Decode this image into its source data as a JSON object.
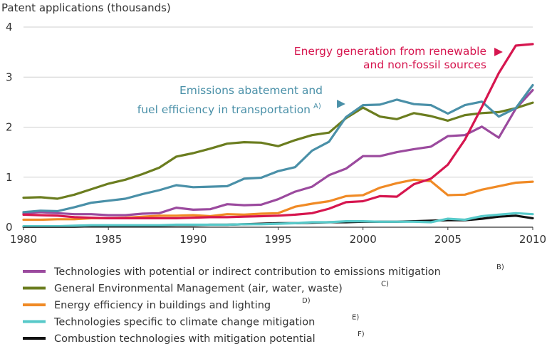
{
  "chart_data": {
    "type": "line",
    "ylabel": "Patent applications (thousands)",
    "xlabel": "",
    "xlim": [
      1980,
      2010
    ],
    "ylim": [
      0,
      4
    ],
    "grid": "horizontal",
    "x_ticks": [
      "1980",
      "1985",
      "1990",
      "1995",
      "2000",
      "2005",
      "2010"
    ],
    "y_ticks": [
      "0",
      "1",
      "2",
      "3",
      "4"
    ],
    "x": [
      1980,
      1981,
      1982,
      1983,
      1984,
      1985,
      1986,
      1987,
      1988,
      1989,
      1990,
      1991,
      1992,
      1993,
      1994,
      1995,
      1996,
      1997,
      1998,
      1999,
      2000,
      2001,
      2002,
      2003,
      2004,
      2005,
      2006,
      2007,
      2008,
      2009,
      2010
    ],
    "series": [
      {
        "key": "renewable",
        "color": "#d6164f",
        "values": [
          0.25,
          0.24,
          0.23,
          0.2,
          0.19,
          0.18,
          0.18,
          0.18,
          0.18,
          0.18,
          0.19,
          0.2,
          0.2,
          0.21,
          0.22,
          0.23,
          0.25,
          0.28,
          0.37,
          0.5,
          0.52,
          0.62,
          0.61,
          0.86,
          0.97,
          1.25,
          1.75,
          2.4,
          3.08,
          3.63,
          3.66
        ]
      },
      {
        "key": "transport",
        "color": "#4a90a8",
        "values": [
          0.3,
          0.33,
          0.32,
          0.4,
          0.49,
          0.53,
          0.57,
          0.66,
          0.74,
          0.84,
          0.8,
          0.81,
          0.82,
          0.97,
          0.99,
          1.12,
          1.2,
          1.53,
          1.71,
          2.2,
          2.44,
          2.45,
          2.55,
          2.46,
          2.44,
          2.27,
          2.44,
          2.51,
          2.21,
          2.38,
          2.84
        ]
      },
      {
        "name": "Technologies with potential or indirect contribution to emissions mitigation",
        "key": "potential",
        "color": "#9b4a9e",
        "values": [
          0.28,
          0.3,
          0.28,
          0.26,
          0.26,
          0.24,
          0.24,
          0.27,
          0.28,
          0.39,
          0.35,
          0.36,
          0.46,
          0.44,
          0.45,
          0.56,
          0.71,
          0.81,
          1.04,
          1.17,
          1.42,
          1.42,
          1.5,
          1.56,
          1.61,
          1.82,
          1.84,
          2.01,
          1.79,
          2.37,
          2.74
        ]
      },
      {
        "name": "General Environmental Management (air, water, waste)",
        "key": "general",
        "color": "#6b7d1f",
        "values": [
          0.59,
          0.6,
          0.57,
          0.65,
          0.76,
          0.87,
          0.95,
          1.06,
          1.19,
          1.41,
          1.48,
          1.57,
          1.67,
          1.7,
          1.69,
          1.62,
          1.74,
          1.84,
          1.89,
          2.18,
          2.39,
          2.21,
          2.16,
          2.28,
          2.22,
          2.13,
          2.24,
          2.28,
          2.3,
          2.38,
          2.49
        ]
      },
      {
        "name": "Energy efficiency in buildings and lighting",
        "key": "buildings",
        "color": "#f08a25",
        "values": [
          0.15,
          0.15,
          0.16,
          0.16,
          0.18,
          0.18,
          0.19,
          0.21,
          0.23,
          0.23,
          0.24,
          0.22,
          0.26,
          0.25,
          0.27,
          0.28,
          0.41,
          0.47,
          0.52,
          0.62,
          0.64,
          0.79,
          0.88,
          0.95,
          0.92,
          0.64,
          0.65,
          0.75,
          0.82,
          0.89,
          0.91
        ]
      },
      {
        "name": "Technologies specific to climate change mitigation",
        "key": "climate",
        "color": "#57c9c9",
        "values": [
          0.02,
          0.02,
          0.02,
          0.03,
          0.04,
          0.04,
          0.04,
          0.04,
          0.04,
          0.05,
          0.05,
          0.05,
          0.05,
          0.06,
          0.06,
          0.07,
          0.08,
          0.1,
          0.1,
          0.12,
          0.12,
          0.11,
          0.11,
          0.11,
          0.1,
          0.17,
          0.15,
          0.22,
          0.25,
          0.28,
          0.26
        ]
      },
      {
        "name": "Combustion technologies with mitigation potential",
        "key": "combustion",
        "color": "#111111",
        "values": [
          0.01,
          0.01,
          0.01,
          0.01,
          0.02,
          0.02,
          0.02,
          0.03,
          0.03,
          0.04,
          0.04,
          0.05,
          0.05,
          0.06,
          0.07,
          0.08,
          0.08,
          0.09,
          0.1,
          0.1,
          0.11,
          0.11,
          0.11,
          0.12,
          0.13,
          0.14,
          0.14,
          0.17,
          0.21,
          0.23,
          0.18
        ]
      }
    ],
    "annotations": [
      {
        "series": "renewable",
        "lines": [
          "Energy generation from renewable",
          "and non-fossil sources"
        ],
        "arrow": "▶"
      },
      {
        "series": "transport",
        "lines": [
          "Emissions abatement and",
          "fuel efficiency in transportation"
        ],
        "sup": "A)",
        "arrow": "▶"
      }
    ],
    "legend": {
      "placement": "bottom",
      "entries": [
        {
          "label": "Technologies with potential or indirect contribution to emissions mitigation",
          "sup": "B)",
          "color": "#9b4a9e"
        },
        {
          "label": "General Environmental Management (air, water, waste)",
          "sup": "C)",
          "color": "#6b7d1f"
        },
        {
          "label": "Energy efficiency in buildings and lighting",
          "sup": "D)",
          "color": "#f08a25"
        },
        {
          "label": "Technologies specific to climate change mitigation",
          "sup": "E)",
          "color": "#57c9c9"
        },
        {
          "label": "Combustion technologies with mitigation potential",
          "sup": "F)",
          "color": "#111111"
        }
      ]
    }
  }
}
